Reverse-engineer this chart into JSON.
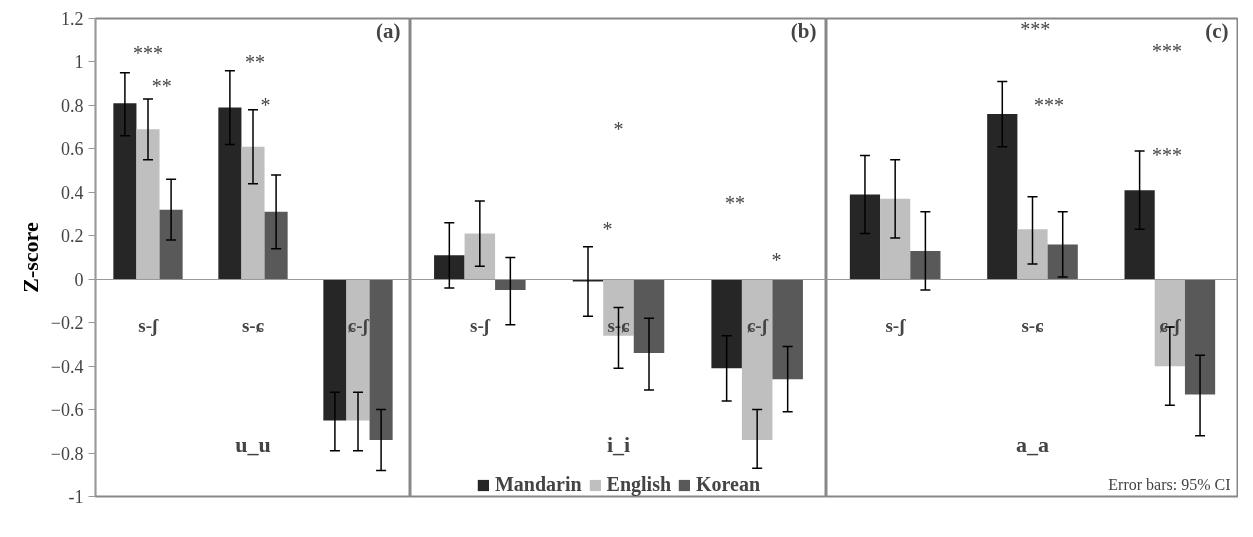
{
  "chart_data": [
    {
      "type": "bar",
      "title": "(a)",
      "xlabel": "u_u",
      "ylabel": "Z-score",
      "categories": [
        "s-ʃ",
        "s-ɕ",
        "ɕ-ʃ"
      ],
      "series": [
        {
          "color": "#262626",
          "values": [
            0.81,
            0.79,
            -0.65
          ],
          "errors": [
            [
              0.66,
              0.95
            ],
            [
              0.62,
              0.96
            ],
            [
              -0.79,
              -0.52
            ]
          ]
        },
        {
          "color": "#bfbfbf",
          "values": [
            0.69,
            0.61,
            -0.65
          ],
          "errors": [
            [
              0.55,
              0.83
            ],
            [
              0.44,
              0.78
            ],
            [
              -0.79,
              -0.52
            ]
          ]
        },
        {
          "color": "#595959",
          "values": [
            0.32,
            0.31,
            -0.74
          ],
          "errors": [
            [
              0.18,
              0.46
            ],
            [
              0.14,
              0.48
            ],
            [
              -0.88,
              -0.6
            ]
          ]
        }
      ],
      "ylim": [
        -1,
        1.2
      ],
      "yticks": [
        {
          "value": -1,
          "label": "-1"
        },
        -0.8,
        -0.6,
        -0.4,
        -0.2,
        0,
        0.2,
        0.4,
        0.6,
        0.8,
        1,
        1.2
      ],
      "grid": false,
      "annotations": [
        "***",
        "**",
        "**",
        "*"
      ]
    },
    {
      "type": "bar",
      "title": "(b)",
      "xlabel": "i_i",
      "categories": [
        "s-ʃ",
        "s-ɕ",
        "ɕ-ʃ"
      ],
      "series": [
        {
          "name": "Mandarin",
          "color": "#262626",
          "values": [
            0.11,
            -0.01,
            -0.41
          ],
          "errors": [
            [
              -0.04,
              0.26
            ],
            [
              -0.17,
              0.15
            ],
            [
              -0.56,
              -0.26
            ]
          ]
        },
        {
          "name": "English",
          "color": "#bfbfbf",
          "values": [
            0.21,
            -0.26,
            -0.74
          ],
          "errors": [
            [
              0.06,
              0.36
            ],
            [
              -0.41,
              -0.13
            ],
            [
              -0.87,
              -0.6
            ]
          ]
        },
        {
          "name": "Korean",
          "color": "#595959",
          "values": [
            -0.05,
            -0.34,
            -0.46
          ],
          "errors": [
            [
              -0.21,
              0.1
            ],
            [
              -0.51,
              -0.18
            ],
            [
              -0.61,
              -0.31
            ]
          ]
        }
      ],
      "ylim": [
        -1,
        1.2
      ],
      "tick_labels": "x",
      "grid": false,
      "legend": "bottom",
      "annotations": [
        "*",
        "*",
        "**",
        "*"
      ]
    },
    {
      "type": "bar",
      "title": "(c)",
      "xlabel": "a_a",
      "categories": [
        "s-ʃ",
        "s-ɕ",
        "ɕ-ʃ"
      ],
      "series": [
        {
          "color": "#262626",
          "values": [
            0.39,
            0.76,
            0.41
          ],
          "errors": [
            [
              0.21,
              0.57
            ],
            [
              0.61,
              0.91
            ],
            [
              0.23,
              0.59
            ]
          ]
        },
        {
          "color": "#bfbfbf",
          "values": [
            0.37,
            0.23,
            -0.4
          ],
          "errors": [
            [
              0.19,
              0.55
            ],
            [
              0.07,
              0.38
            ],
            [
              -0.58,
              -0.22
            ]
          ]
        },
        {
          "color": "#595959",
          "values": [
            0.13,
            0.16,
            -0.53
          ],
          "errors": [
            [
              -0.05,
              0.31
            ],
            [
              0.01,
              0.31
            ],
            [
              -0.72,
              -0.35
            ]
          ]
        }
      ],
      "ylim": [
        -1,
        1.2
      ],
      "tick_labels": "x",
      "grid": false,
      "annotations": [
        "***",
        "***",
        "***",
        "***",
        "Error bars: 95% CI"
      ]
    }
  ]
}
